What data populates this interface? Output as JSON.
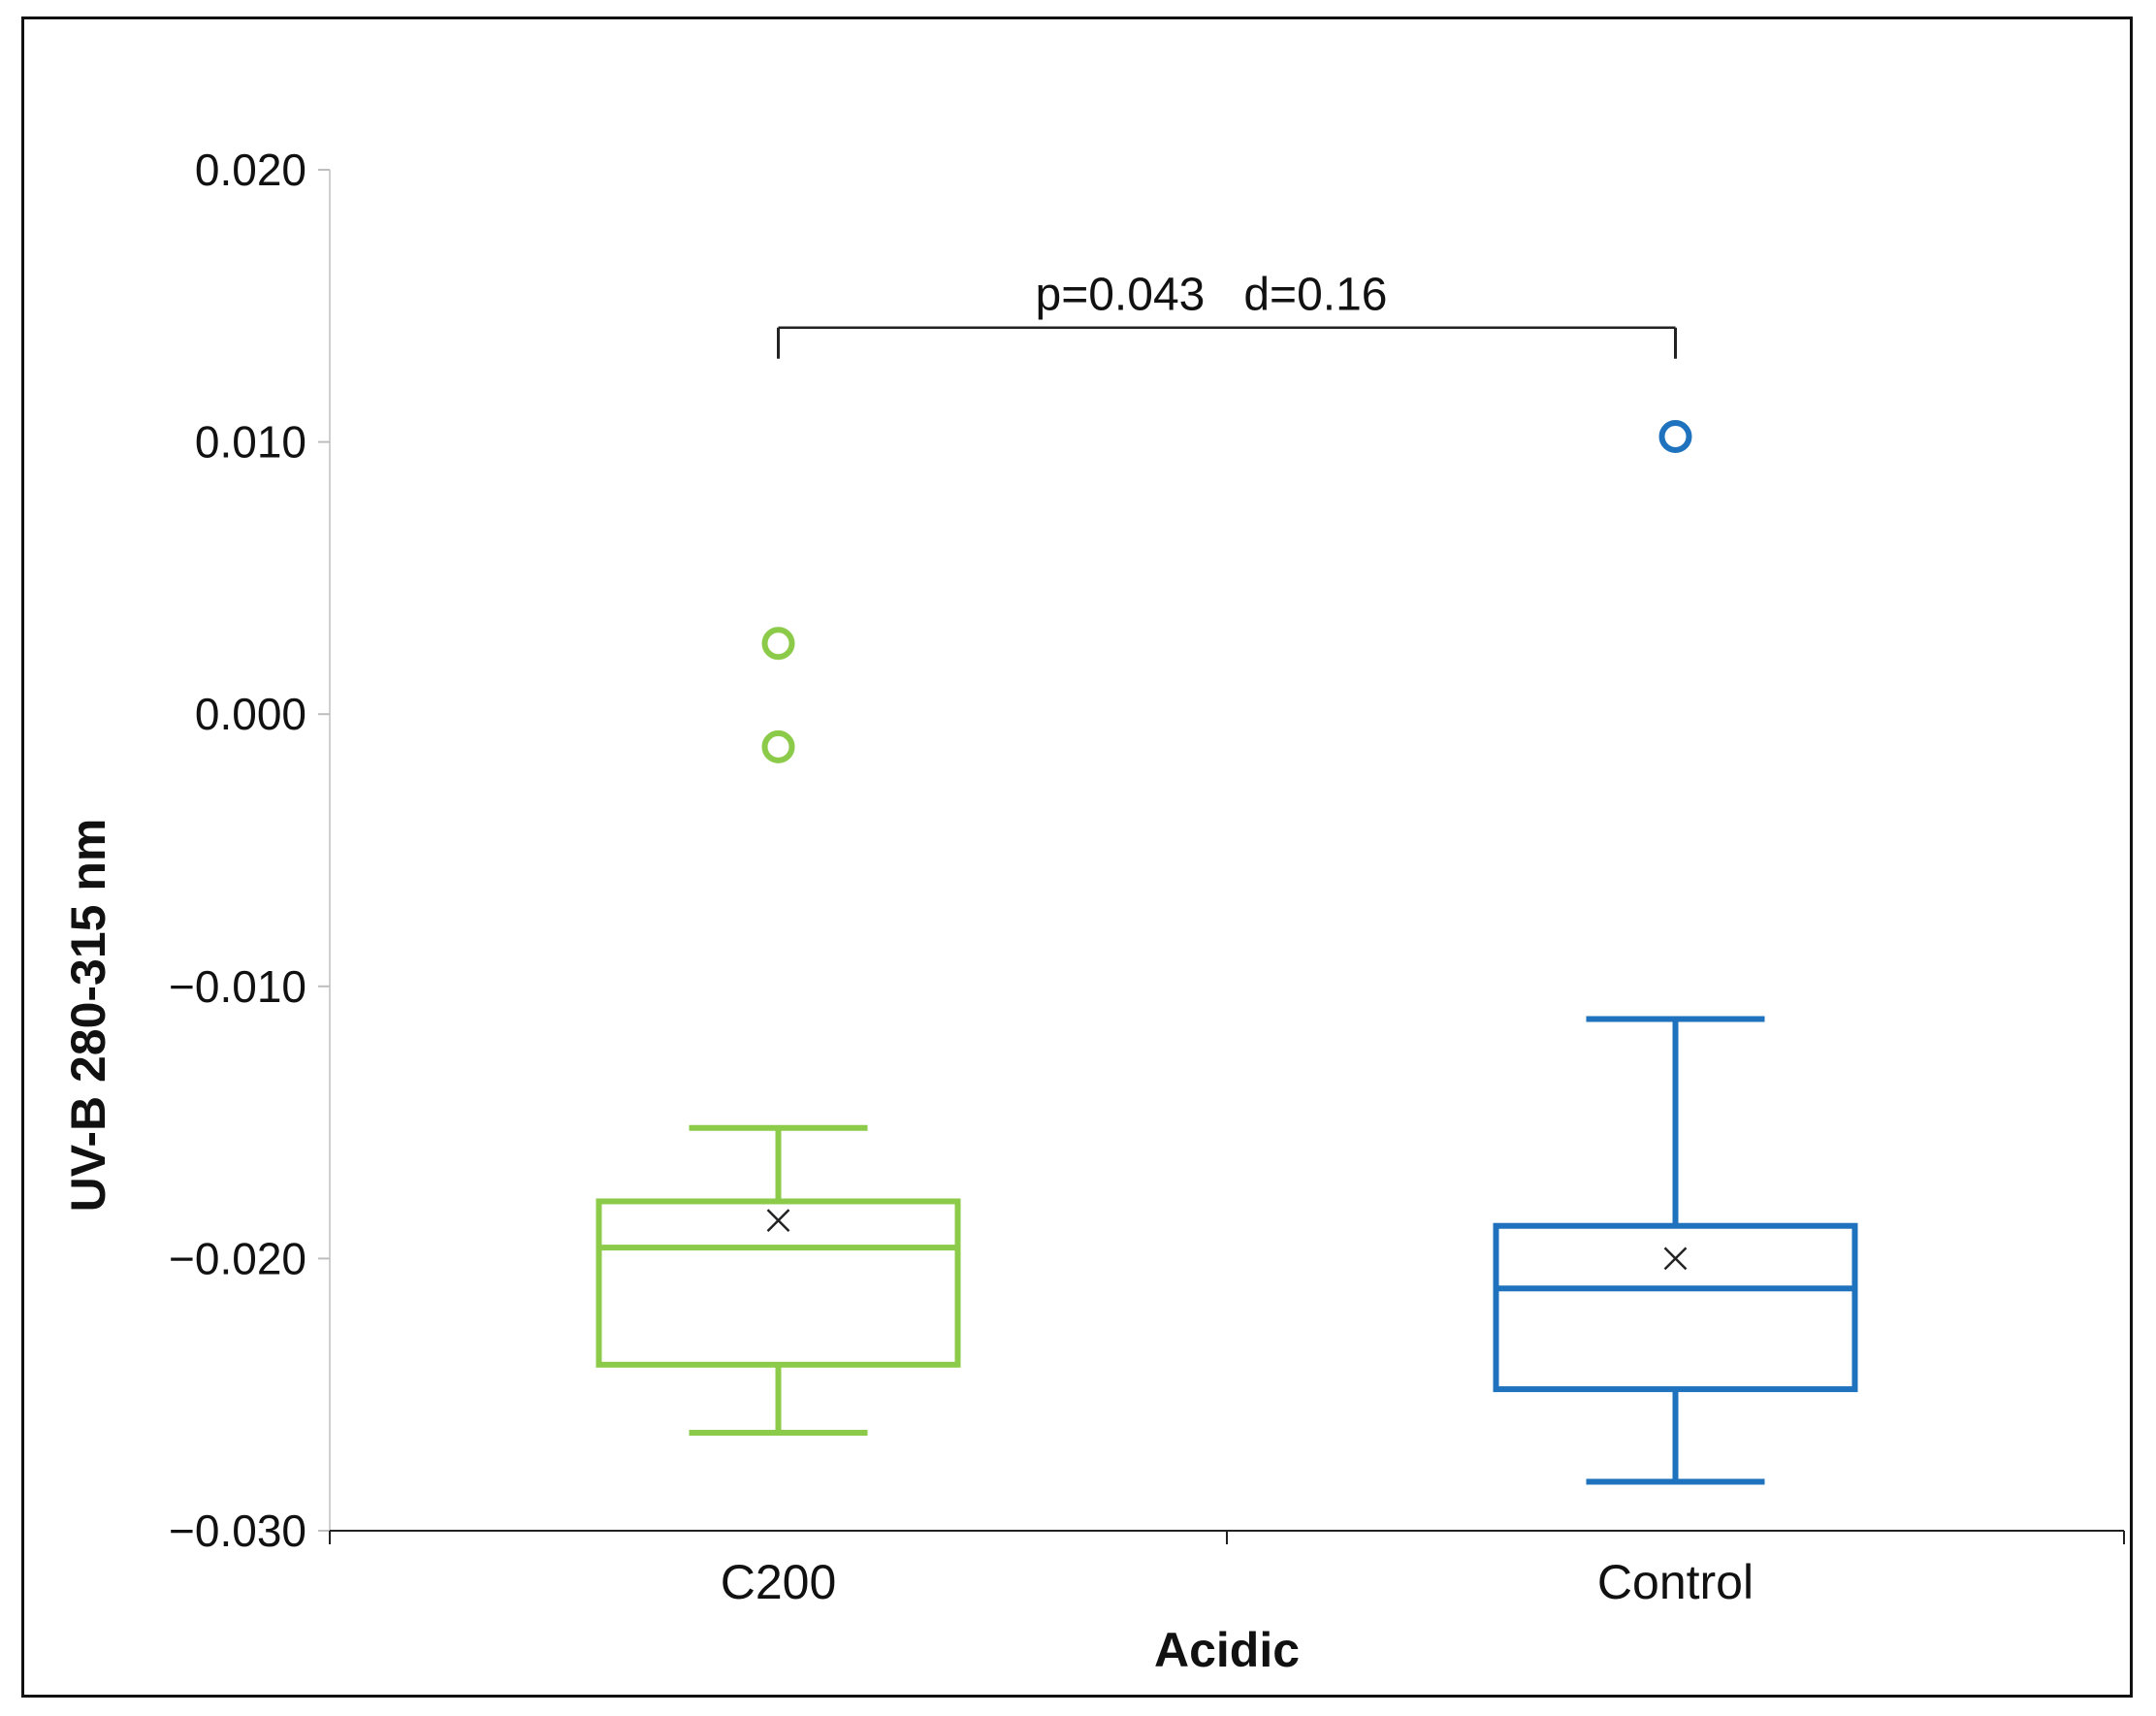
{
  "chart_data": {
    "type": "box",
    "title": "",
    "xlabel": "Acidic",
    "ylabel": "UV-B 280-315 nm",
    "ylim": [
      -0.03,
      0.02
    ],
    "yticks": [
      "0.020",
      "0.010",
      "0.000",
      "−0.010",
      "−0.020",
      "−0.030"
    ],
    "ytick_values": [
      0.02,
      0.01,
      0.0,
      -0.01,
      -0.02,
      -0.03
    ],
    "grid": false,
    "legend": "none",
    "categories": [
      "C200",
      "Control"
    ],
    "series": [
      {
        "category": "C200",
        "color": "#8CCB4A",
        "whisker_low": -0.0264,
        "q1": -0.0239,
        "median": -0.0196,
        "q3": -0.0179,
        "whisker_high": -0.0152,
        "mean": -0.0186,
        "outliers": [
          0.0026,
          -0.0012
        ]
      },
      {
        "category": "Control",
        "color": "#1F72BD",
        "whisker_low": -0.0282,
        "q1": -0.0248,
        "median": -0.0211,
        "q3": -0.0188,
        "whisker_high": -0.0112,
        "mean": -0.02,
        "outliers": [
          0.0102
        ]
      }
    ],
    "annotation": {
      "text": "p=0.043   d=0.16",
      "between": [
        "C200",
        "Control"
      ],
      "bracket_value": 0.0142
    }
  }
}
